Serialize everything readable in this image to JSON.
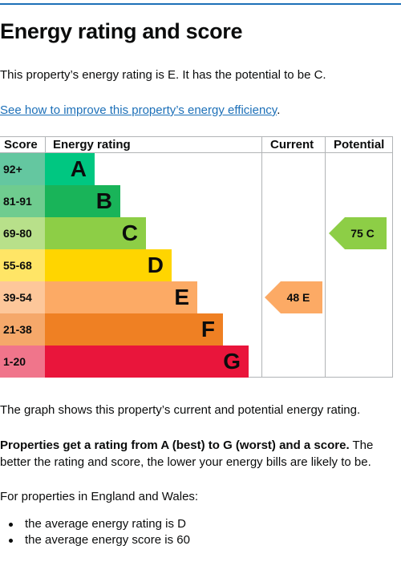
{
  "heading": "Energy rating and score",
  "intro": "This property’s energy rating is E. It has the potential to be C.",
  "link_text": "See how to improve this property’s energy efficiency",
  "link_suffix": ".",
  "chart": {
    "headers": {
      "score": "Score",
      "energy_rating": "Energy rating",
      "current": "Current",
      "potential": "Potential"
    },
    "bands": [
      {
        "score": "92+",
        "letter": "A",
        "color": "#00c781",
        "score_bg": "#64c7a0"
      },
      {
        "score": "81-91",
        "letter": "B",
        "color": "#19b459",
        "score_bg": "#6fcc8f"
      },
      {
        "score": "69-80",
        "letter": "C",
        "color": "#8dce46",
        "score_bg": "#b8e08a"
      },
      {
        "score": "55-68",
        "letter": "D",
        "color": "#ffd500",
        "score_bg": "#ffe566"
      },
      {
        "score": "39-54",
        "letter": "E",
        "color": "#fcaa65",
        "score_bg": "#fdc79a"
      },
      {
        "score": "21-38",
        "letter": "F",
        "color": "#ef8023",
        "score_bg": "#f5a86a"
      },
      {
        "score": "1-20",
        "letter": "G",
        "color": "#e9153b",
        "score_bg": "#f0758b"
      }
    ],
    "current": {
      "score": "48",
      "letter": "E",
      "label": "48 E",
      "band_index": 4,
      "color": "#fcaa65"
    },
    "potential": {
      "score": "75",
      "letter": "C",
      "label": "75 C",
      "band_index": 2,
      "color": "#8dce46"
    }
  },
  "graph_caption": "The graph shows this property’s current and potential energy rating.",
  "rating_bold": "Properties get a rating from A (best) to G (worst) and a score.",
  "rating_rest": " The better the rating and score, the lower your energy bills are likely to be.",
  "england_wales": "For properties in England and Wales:",
  "averages": [
    "the average energy rating is D",
    "the average energy score is 60"
  ]
}
